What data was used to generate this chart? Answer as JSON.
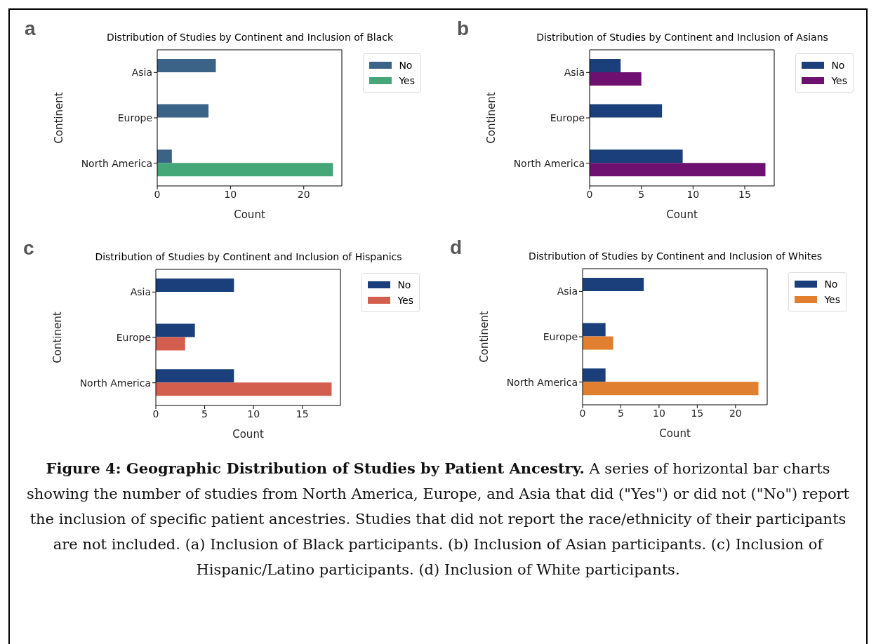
{
  "chart_data": [
    {
      "type": "bar",
      "orientation": "horizontal",
      "title": "Distribution of Studies by Continent and Inclusion of Black",
      "xlabel": "Count",
      "ylabel": "Continent",
      "categories": [
        "Asia",
        "Europe",
        "North America"
      ],
      "series": [
        {
          "name": "No",
          "color": "#3b6388",
          "values": [
            8,
            7,
            2
          ]
        },
        {
          "name": "Yes",
          "color": "#45a778",
          "values": [
            null,
            null,
            24
          ]
        }
      ],
      "xlim": [
        0,
        25.2
      ],
      "xticks": [
        0,
        10,
        20
      ],
      "legend": "top right",
      "annotations": [
        "a",
        "Figure 4: Geographic Distribution of Studies by Patient Ancestry.",
        "A series of horizontal bar charts showing the number of studies from North America, Europe, and Asia that did (\"Yes\") or did not (\"No\") report the inclusion of specific patient ancestries. Studies that did not report the race/ethnicity of their participants are not included. (a) Inclusion of Black participants. (b) Inclusion of Asian participants. (c) Inclusion of Hispanic/Latino participants. (d) Inclusion of White participants."
      ]
    },
    {
      "type": "bar",
      "orientation": "horizontal",
      "title": "Distribution of Studies by Continent and Inclusion of Asians",
      "xlabel": "Count",
      "ylabel": "Continent",
      "categories": [
        "Asia",
        "Europe",
        "North America"
      ],
      "series": [
        {
          "name": "No",
          "color": "#1a3f7a",
          "values": [
            3,
            7,
            9
          ]
        },
        {
          "name": "Yes",
          "color": "#6e1070",
          "values": [
            5,
            null,
            17
          ]
        }
      ],
      "xlim": [
        0,
        17.85
      ],
      "xticks": [
        0,
        5,
        10,
        15
      ],
      "legend": "top right",
      "annotations": [
        "b"
      ]
    },
    {
      "type": "bar",
      "orientation": "horizontal",
      "title": "Distribution of Studies by Continent and Inclusion of Hispanics",
      "xlabel": "Count",
      "ylabel": "Continent",
      "categories": [
        "Asia",
        "Europe",
        "North America"
      ],
      "series": [
        {
          "name": "No",
          "color": "#1a3f7a",
          "values": [
            8,
            4,
            8
          ]
        },
        {
          "name": "Yes",
          "color": "#d45e4d",
          "values": [
            null,
            3,
            18
          ]
        }
      ],
      "xlim": [
        0,
        18.9
      ],
      "xticks": [
        0,
        5,
        10,
        15
      ],
      "legend": "top right",
      "annotations": [
        "c"
      ]
    },
    {
      "type": "bar",
      "orientation": "horizontal",
      "title": "Distribution of Studies by Continent and Inclusion of Whites",
      "xlabel": "Count",
      "ylabel": "Continent",
      "categories": [
        "Asia",
        "Europe",
        "North America"
      ],
      "series": [
        {
          "name": "No",
          "color": "#1a3f7a",
          "values": [
            8,
            3,
            3
          ]
        },
        {
          "name": "Yes",
          "color": "#e07f2f",
          "values": [
            null,
            4,
            23
          ]
        }
      ],
      "xlim": [
        0,
        24.15
      ],
      "xticks": [
        0,
        5,
        10,
        15,
        20
      ],
      "legend": "top right",
      "annotations": [
        "d"
      ]
    }
  ]
}
